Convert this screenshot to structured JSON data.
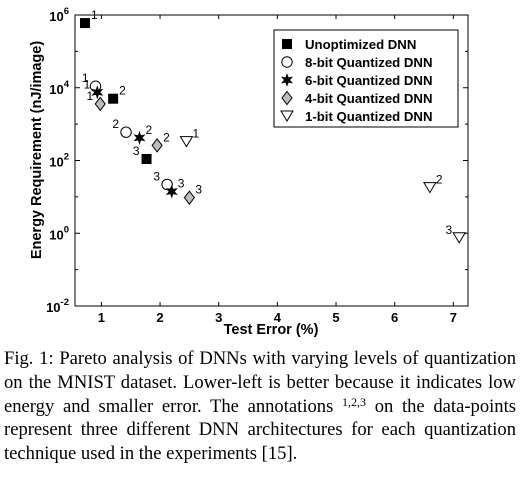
{
  "chart_data": {
    "type": "scatter",
    "xlabel": "Test Error (%)",
    "ylabel": "Energy Requirement (nJ/image)",
    "xlim": [
      0.55,
      7.25
    ],
    "ylim_log10": [
      -2,
      6
    ],
    "yscale": "log",
    "grid": false,
    "legend_position": "top-right",
    "x_ticks": [
      "1",
      "2",
      "3",
      "4",
      "5",
      "6",
      "7"
    ],
    "x_tick_values": [
      1,
      2,
      3,
      4,
      5,
      6,
      7
    ],
    "y_ticks": [
      {
        "base": "10",
        "exp": "-2",
        "value_log10": -2
      },
      {
        "base": "10",
        "exp": "0",
        "value_log10": 0
      },
      {
        "base": "10",
        "exp": "2",
        "value_log10": 2
      },
      {
        "base": "10",
        "exp": "4",
        "value_log10": 4
      },
      {
        "base": "10",
        "exp": "6",
        "value_log10": 6
      }
    ],
    "series": [
      {
        "name": "Unoptimized DNN",
        "marker": "square",
        "points": [
          {
            "x": 0.72,
            "y": 600000,
            "label": "1",
            "label_pos": "right"
          },
          {
            "x": 1.2,
            "y": 5000,
            "label": "2",
            "label_pos": "right"
          },
          {
            "x": 1.77,
            "y": 110,
            "label": "3",
            "label_pos": "left"
          }
        ]
      },
      {
        "name": "8-bit Quantized DNN",
        "marker": "circle",
        "points": [
          {
            "x": 0.9,
            "y": 11000,
            "label": "1",
            "label_pos": "left"
          },
          {
            "x": 1.42,
            "y": 600,
            "label": "2",
            "label_pos": "left"
          },
          {
            "x": 2.12,
            "y": 22,
            "label": "3",
            "label_pos": "left"
          }
        ]
      },
      {
        "name": "6-bit Quantized DNN",
        "marker": "star",
        "points": [
          {
            "x": 0.93,
            "y": 7500,
            "label": "1",
            "label_pos": "left"
          },
          {
            "x": 1.65,
            "y": 420,
            "label": "2",
            "label_pos": "right"
          },
          {
            "x": 2.2,
            "y": 14,
            "label": "3",
            "label_pos": "right"
          }
        ]
      },
      {
        "name": "4-bit Quantized DNN",
        "marker": "diamond",
        "points": [
          {
            "x": 0.98,
            "y": 3600,
            "label": "1",
            "label_pos": "left"
          },
          {
            "x": 1.95,
            "y": 260,
            "label": "2",
            "label_pos": "right"
          },
          {
            "x": 2.5,
            "y": 9.5,
            "label": "3",
            "label_pos": "right"
          }
        ]
      },
      {
        "name": "1-bit Quantized DNN",
        "marker": "triangle-down",
        "points": [
          {
            "x": 2.45,
            "y": 330,
            "label": "1",
            "label_pos": "right"
          },
          {
            "x": 6.6,
            "y": 18,
            "label": "2",
            "label_pos": "right"
          },
          {
            "x": 7.1,
            "y": 0.75,
            "label": "3",
            "label_pos": "left"
          }
        ]
      }
    ]
  },
  "caption": {
    "lead": "Fig. 1: Pareto analysis of DNNs with varying levels of quantization on the MNIST dataset. Lower-left is better because it indicates low energy and smaller error. The annotations ",
    "superscript": "1,2,3",
    "tail": " on the data-points represent three different DNN architectures for each quantization technique used in the experiments [15]."
  }
}
